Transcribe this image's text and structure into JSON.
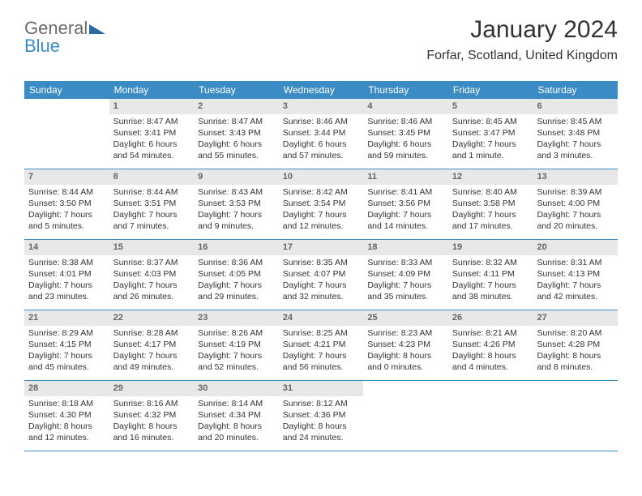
{
  "logo": {
    "part1": "General",
    "part2": "Blue"
  },
  "title": "January 2024",
  "location": "Forfar, Scotland, United Kingdom",
  "weekdays": [
    "Sunday",
    "Monday",
    "Tuesday",
    "Wednesday",
    "Thursday",
    "Friday",
    "Saturday"
  ],
  "header_bg": "#3b8cc4",
  "daynum_bg": "#e8e8e8",
  "weeks": [
    [
      {
        "day": "",
        "sunrise": "",
        "sunset": "",
        "daylight": ""
      },
      {
        "day": "1",
        "sunrise": "Sunrise: 8:47 AM",
        "sunset": "Sunset: 3:41 PM",
        "daylight": "Daylight: 6 hours and 54 minutes."
      },
      {
        "day": "2",
        "sunrise": "Sunrise: 8:47 AM",
        "sunset": "Sunset: 3:43 PM",
        "daylight": "Daylight: 6 hours and 55 minutes."
      },
      {
        "day": "3",
        "sunrise": "Sunrise: 8:46 AM",
        "sunset": "Sunset: 3:44 PM",
        "daylight": "Daylight: 6 hours and 57 minutes."
      },
      {
        "day": "4",
        "sunrise": "Sunrise: 8:46 AM",
        "sunset": "Sunset: 3:45 PM",
        "daylight": "Daylight: 6 hours and 59 minutes."
      },
      {
        "day": "5",
        "sunrise": "Sunrise: 8:45 AM",
        "sunset": "Sunset: 3:47 PM",
        "daylight": "Daylight: 7 hours and 1 minute."
      },
      {
        "day": "6",
        "sunrise": "Sunrise: 8:45 AM",
        "sunset": "Sunset: 3:48 PM",
        "daylight": "Daylight: 7 hours and 3 minutes."
      }
    ],
    [
      {
        "day": "7",
        "sunrise": "Sunrise: 8:44 AM",
        "sunset": "Sunset: 3:50 PM",
        "daylight": "Daylight: 7 hours and 5 minutes."
      },
      {
        "day": "8",
        "sunrise": "Sunrise: 8:44 AM",
        "sunset": "Sunset: 3:51 PM",
        "daylight": "Daylight: 7 hours and 7 minutes."
      },
      {
        "day": "9",
        "sunrise": "Sunrise: 8:43 AM",
        "sunset": "Sunset: 3:53 PM",
        "daylight": "Daylight: 7 hours and 9 minutes."
      },
      {
        "day": "10",
        "sunrise": "Sunrise: 8:42 AM",
        "sunset": "Sunset: 3:54 PM",
        "daylight": "Daylight: 7 hours and 12 minutes."
      },
      {
        "day": "11",
        "sunrise": "Sunrise: 8:41 AM",
        "sunset": "Sunset: 3:56 PM",
        "daylight": "Daylight: 7 hours and 14 minutes."
      },
      {
        "day": "12",
        "sunrise": "Sunrise: 8:40 AM",
        "sunset": "Sunset: 3:58 PM",
        "daylight": "Daylight: 7 hours and 17 minutes."
      },
      {
        "day": "13",
        "sunrise": "Sunrise: 8:39 AM",
        "sunset": "Sunset: 4:00 PM",
        "daylight": "Daylight: 7 hours and 20 minutes."
      }
    ],
    [
      {
        "day": "14",
        "sunrise": "Sunrise: 8:38 AM",
        "sunset": "Sunset: 4:01 PM",
        "daylight": "Daylight: 7 hours and 23 minutes."
      },
      {
        "day": "15",
        "sunrise": "Sunrise: 8:37 AM",
        "sunset": "Sunset: 4:03 PM",
        "daylight": "Daylight: 7 hours and 26 minutes."
      },
      {
        "day": "16",
        "sunrise": "Sunrise: 8:36 AM",
        "sunset": "Sunset: 4:05 PM",
        "daylight": "Daylight: 7 hours and 29 minutes."
      },
      {
        "day": "17",
        "sunrise": "Sunrise: 8:35 AM",
        "sunset": "Sunset: 4:07 PM",
        "daylight": "Daylight: 7 hours and 32 minutes."
      },
      {
        "day": "18",
        "sunrise": "Sunrise: 8:33 AM",
        "sunset": "Sunset: 4:09 PM",
        "daylight": "Daylight: 7 hours and 35 minutes."
      },
      {
        "day": "19",
        "sunrise": "Sunrise: 8:32 AM",
        "sunset": "Sunset: 4:11 PM",
        "daylight": "Daylight: 7 hours and 38 minutes."
      },
      {
        "day": "20",
        "sunrise": "Sunrise: 8:31 AM",
        "sunset": "Sunset: 4:13 PM",
        "daylight": "Daylight: 7 hours and 42 minutes."
      }
    ],
    [
      {
        "day": "21",
        "sunrise": "Sunrise: 8:29 AM",
        "sunset": "Sunset: 4:15 PM",
        "daylight": "Daylight: 7 hours and 45 minutes."
      },
      {
        "day": "22",
        "sunrise": "Sunrise: 8:28 AM",
        "sunset": "Sunset: 4:17 PM",
        "daylight": "Daylight: 7 hours and 49 minutes."
      },
      {
        "day": "23",
        "sunrise": "Sunrise: 8:26 AM",
        "sunset": "Sunset: 4:19 PM",
        "daylight": "Daylight: 7 hours and 52 minutes."
      },
      {
        "day": "24",
        "sunrise": "Sunrise: 8:25 AM",
        "sunset": "Sunset: 4:21 PM",
        "daylight": "Daylight: 7 hours and 56 minutes."
      },
      {
        "day": "25",
        "sunrise": "Sunrise: 8:23 AM",
        "sunset": "Sunset: 4:23 PM",
        "daylight": "Daylight: 8 hours and 0 minutes."
      },
      {
        "day": "26",
        "sunrise": "Sunrise: 8:21 AM",
        "sunset": "Sunset: 4:26 PM",
        "daylight": "Daylight: 8 hours and 4 minutes."
      },
      {
        "day": "27",
        "sunrise": "Sunrise: 8:20 AM",
        "sunset": "Sunset: 4:28 PM",
        "daylight": "Daylight: 8 hours and 8 minutes."
      }
    ],
    [
      {
        "day": "28",
        "sunrise": "Sunrise: 8:18 AM",
        "sunset": "Sunset: 4:30 PM",
        "daylight": "Daylight: 8 hours and 12 minutes."
      },
      {
        "day": "29",
        "sunrise": "Sunrise: 8:16 AM",
        "sunset": "Sunset: 4:32 PM",
        "daylight": "Daylight: 8 hours and 16 minutes."
      },
      {
        "day": "30",
        "sunrise": "Sunrise: 8:14 AM",
        "sunset": "Sunset: 4:34 PM",
        "daylight": "Daylight: 8 hours and 20 minutes."
      },
      {
        "day": "31",
        "sunrise": "Sunrise: 8:12 AM",
        "sunset": "Sunset: 4:36 PM",
        "daylight": "Daylight: 8 hours and 24 minutes."
      },
      {
        "day": "",
        "sunrise": "",
        "sunset": "",
        "daylight": ""
      },
      {
        "day": "",
        "sunrise": "",
        "sunset": "",
        "daylight": ""
      },
      {
        "day": "",
        "sunrise": "",
        "sunset": "",
        "daylight": ""
      }
    ]
  ]
}
